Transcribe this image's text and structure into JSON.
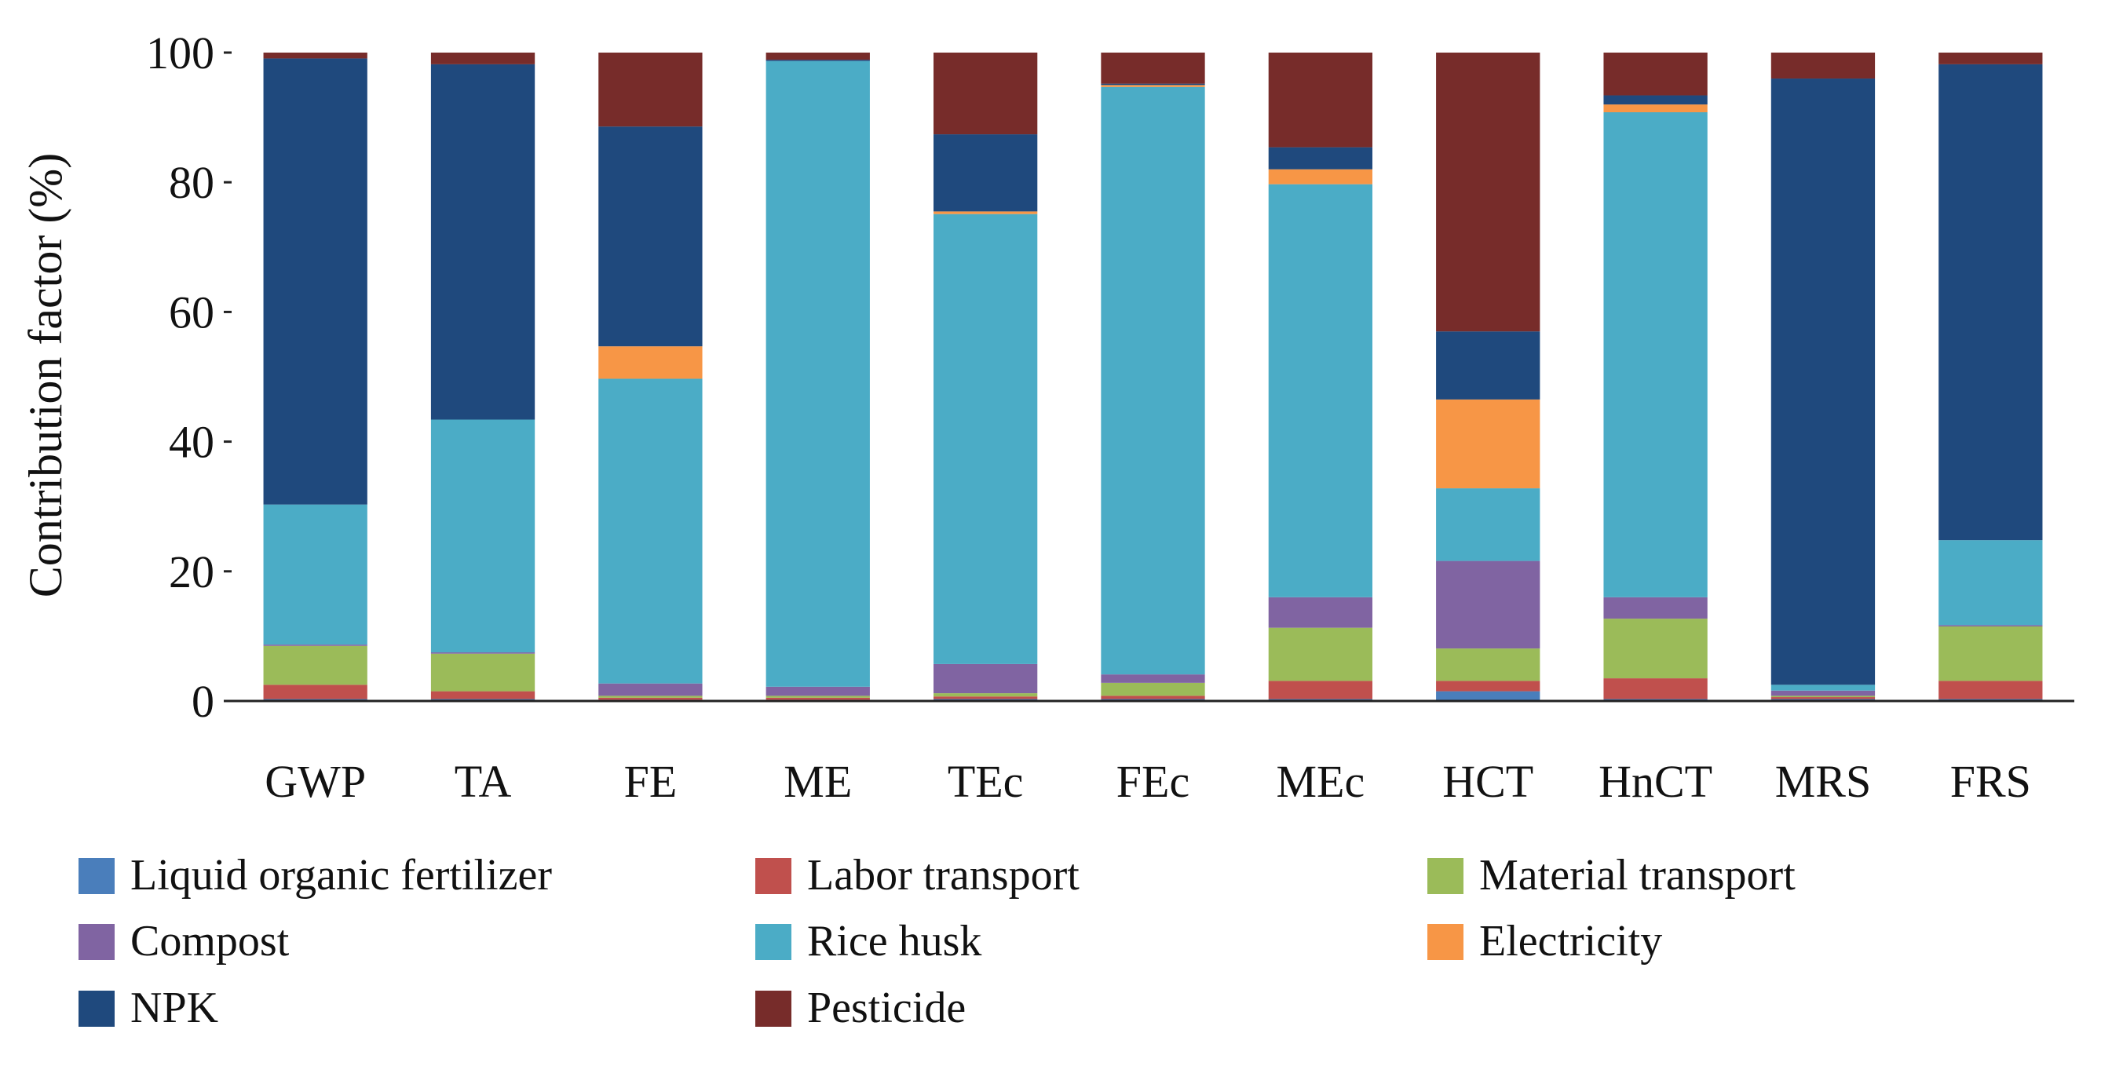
{
  "chart_data": {
    "type": "bar",
    "stacked": true,
    "ylabel": "Contribution factor (%)",
    "xlabel": "",
    "ylim": [
      0,
      100
    ],
    "yticks": [
      0,
      20,
      40,
      60,
      80,
      100
    ],
    "grid": false,
    "legend_position": "bottom",
    "categories": [
      "GWP",
      "TA",
      "FE",
      "ME",
      "TEc",
      "FEc",
      "MEc",
      "HCT",
      "HnCT",
      "MRS",
      "FRS"
    ],
    "series": [
      {
        "name": "Liquid organic fertilizer",
        "color": "#4A7EBB",
        "values": [
          0.3,
          0.3,
          0.2,
          0.2,
          0.3,
          0.3,
          0.3,
          1.5,
          0.3,
          0.3,
          0.3
        ]
      },
      {
        "name": "Labor transport",
        "color": "#C0504D",
        "values": [
          2.2,
          1.2,
          0.3,
          0.3,
          0.4,
          0.5,
          2.8,
          1.6,
          3.2,
          0.3,
          2.8
        ]
      },
      {
        "name": "Material transport",
        "color": "#9BBB59",
        "values": [
          6.0,
          5.8,
          0.3,
          0.3,
          0.5,
          2.0,
          8.2,
          5.0,
          9.2,
          0.2,
          8.4
        ]
      },
      {
        "name": "Compost",
        "color": "#8064A2",
        "values": [
          0.2,
          0.2,
          1.9,
          1.4,
          4.5,
          1.3,
          4.7,
          13.5,
          3.3,
          0.8,
          0.2
        ]
      },
      {
        "name": "Rice husk",
        "color": "#4BACC6",
        "values": [
          21.6,
          35.9,
          47.0,
          96.5,
          69.4,
          90.6,
          63.7,
          11.2,
          74.8,
          0.9,
          13.1
        ]
      },
      {
        "name": "Electricity",
        "color": "#F79646",
        "values": [
          0.0,
          0.0,
          5.0,
          0.0,
          0.4,
          0.3,
          2.3,
          13.7,
          1.2,
          0.0,
          0.0
        ]
      },
      {
        "name": "NPK",
        "color": "#1F497D",
        "values": [
          68.8,
          54.8,
          33.9,
          0.2,
          11.9,
          0.2,
          3.4,
          10.5,
          1.4,
          93.5,
          73.4
        ]
      },
      {
        "name": "Pesticide",
        "color": "#772C2A",
        "values": [
          0.9,
          1.8,
          11.4,
          1.1,
          12.6,
          4.8,
          14.6,
          43.0,
          6.6,
          4.0,
          1.8
        ]
      }
    ]
  }
}
